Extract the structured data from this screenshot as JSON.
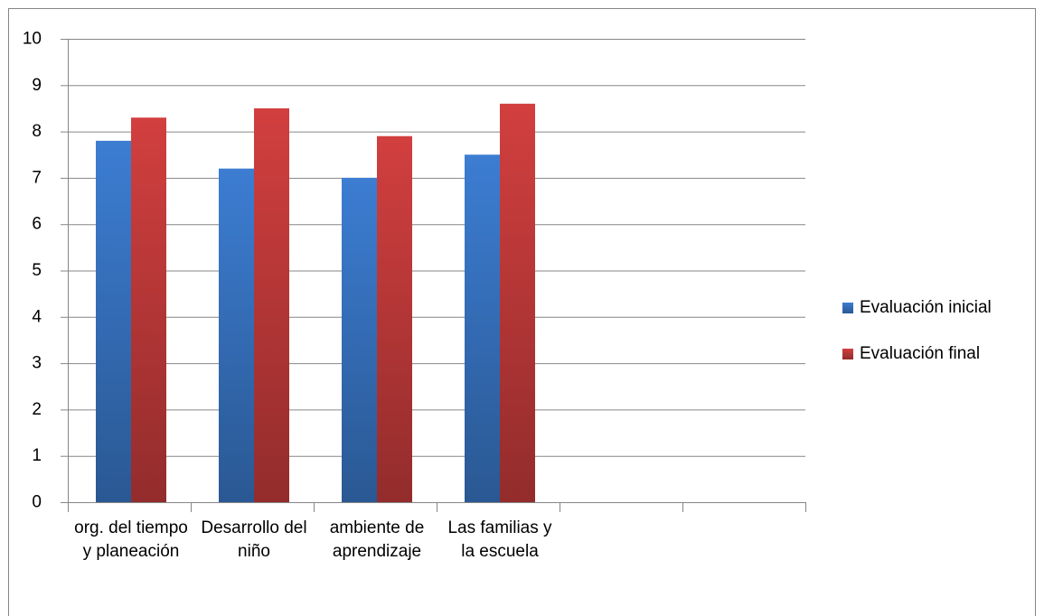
{
  "chart_data": {
    "type": "bar",
    "categories": [
      "org. del tiempo y planeación",
      "Desarrollo del niño",
      "ambiente de aprendizaje",
      "Las familias y la escuela",
      null,
      null
    ],
    "series": [
      {
        "name": "Evaluación inicial",
        "color": "#3c7dd2",
        "values": [
          7.8,
          7.2,
          7.0,
          7.5,
          null,
          null
        ]
      },
      {
        "name": "Evaluación final",
        "color": "#d23f3f",
        "values": [
          8.3,
          8.5,
          7.9,
          8.6,
          null,
          null
        ]
      }
    ],
    "ylim": [
      0,
      10
    ],
    "yticks": [
      0,
      1,
      2,
      3,
      4,
      5,
      6,
      7,
      8,
      9,
      10
    ],
    "grid": true,
    "legend": "right"
  }
}
